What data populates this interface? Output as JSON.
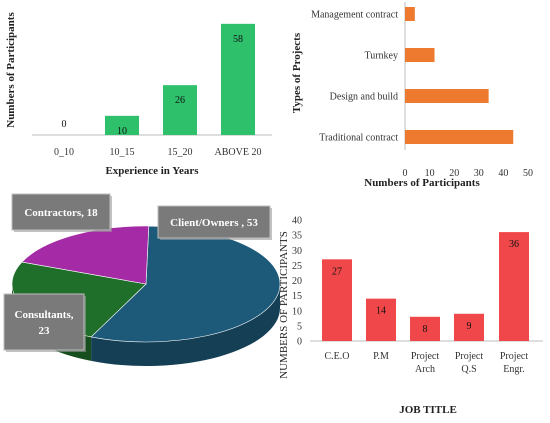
{
  "chart_data": [
    {
      "type": "bar",
      "xlabel": "Experience in Years",
      "ylabel": "Numbers of Participants",
      "categories": [
        "0_10",
        "10_15",
        "15_20",
        "ABOVE 20"
      ],
      "values": [
        0,
        10,
        26,
        58
      ],
      "data_labels": [
        "0",
        "10",
        "26",
        "58"
      ],
      "ylim": [
        0,
        60
      ],
      "color": "#2ec06b",
      "grid": false
    },
    {
      "type": "bar",
      "orientation": "horizontal",
      "xlabel": "Numbers of Participants",
      "ylabel": "Types of Projects",
      "categories": [
        "Traditional contract",
        "Design and build",
        "Turnkey",
        "Management contract"
      ],
      "values": [
        44,
        34,
        12,
        4
      ],
      "xlim": [
        0,
        50
      ],
      "x_ticks": [
        "0",
        "10",
        "20",
        "30",
        "40",
        "50"
      ],
      "color": "#ee7a2f",
      "grid": false
    },
    {
      "type": "pie",
      "style": "3d",
      "slices": [
        {
          "label": "Client/Owners , 53",
          "name": "Client/Owners",
          "value": 53,
          "color": "#1d5a7a"
        },
        {
          "label": "Consultants, 23",
          "name": "Consultants",
          "value": 23,
          "color": "#1f6f2a"
        },
        {
          "label": "Contractors, 18",
          "name": "Contractors",
          "value": 18,
          "color": "#a52aa5"
        }
      ]
    },
    {
      "type": "bar",
      "xlabel": "JOB TITLE",
      "ylabel": "NUMBERS OF PARTICIPANTS",
      "categories": [
        "C.E.O",
        "P.M",
        "Project Arch",
        "Project Q.S",
        "Project Engr."
      ],
      "values": [
        27,
        14,
        8,
        9,
        36
      ],
      "data_labels": [
        "27",
        "14",
        "8",
        "9",
        "36"
      ],
      "ylim": [
        0,
        40
      ],
      "y_ticks": [
        "0",
        "5",
        "10",
        "15",
        "20",
        "25",
        "30",
        "35",
        "40"
      ],
      "color": "#f0484a",
      "grid": false
    }
  ]
}
